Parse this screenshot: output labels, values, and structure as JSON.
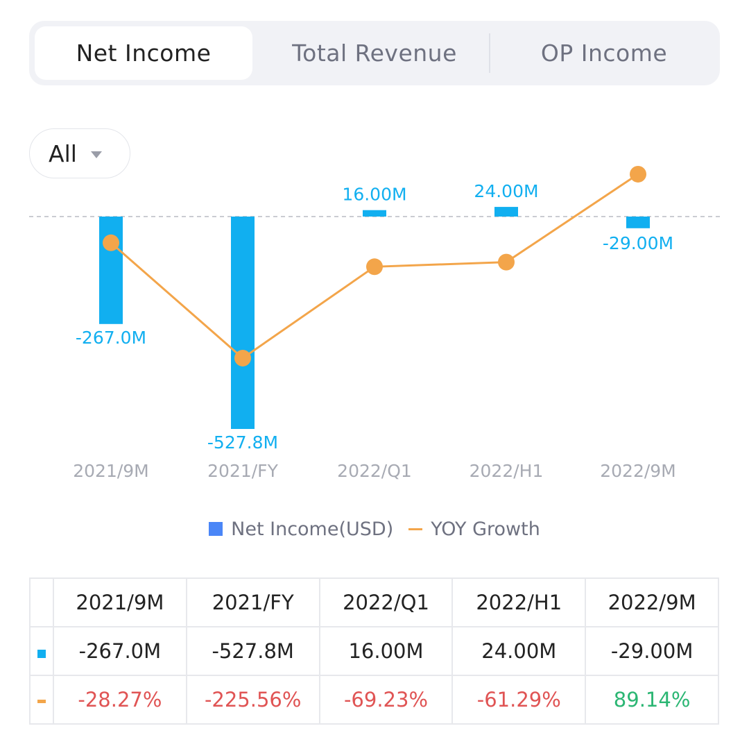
{
  "tabs": [
    {
      "label": "Net Income",
      "active": true
    },
    {
      "label": "Total Revenue",
      "active": false
    },
    {
      "label": "OP Income",
      "active": false
    }
  ],
  "filter": {
    "label": "All"
  },
  "legend": {
    "bar_label": "Net Income(USD)",
    "line_label": "YOY Growth"
  },
  "colors": {
    "bar": "#11aff0",
    "line": "#f3a54a",
    "legend_bar": "#4a86f7",
    "negative": "#e05454",
    "positive": "#2bb673"
  },
  "chart_data": {
    "type": "bar",
    "categories": [
      "2021/9M",
      "2021/FY",
      "2022/Q1",
      "2022/H1",
      "2022/9M"
    ],
    "series": [
      {
        "name": "Net Income(USD)",
        "type": "bar",
        "values": [
          -267.0,
          -527.8,
          16.0,
          24.0,
          -29.0
        ],
        "labels": [
          "-267.0M",
          "-527.8M",
          "16.00M",
          "24.00M",
          "-29.00M"
        ]
      },
      {
        "name": "YOY Growth",
        "type": "line",
        "values": [
          -28.27,
          -225.56,
          -69.23,
          -61.29,
          89.14
        ],
        "labels": [
          "-28.27%",
          "-225.56%",
          "-69.23%",
          "-61.29%",
          "89.14%"
        ]
      }
    ]
  },
  "table": {
    "headers": [
      "2021/9M",
      "2021/FY",
      "2022/Q1",
      "2022/H1",
      "2022/9M"
    ],
    "bar_row": [
      "-267.0M",
      "-527.8M",
      "16.00M",
      "24.00M",
      "-29.00M"
    ],
    "line_row": [
      "-28.27%",
      "-225.56%",
      "-69.23%",
      "-61.29%",
      "89.14%"
    ]
  }
}
